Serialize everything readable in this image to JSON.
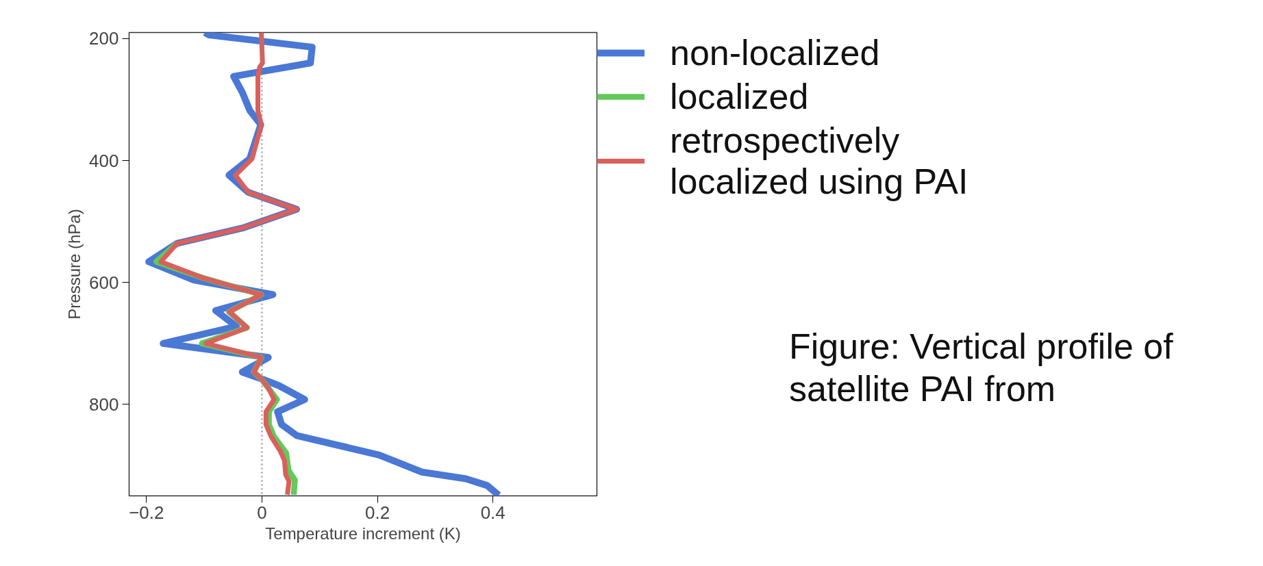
{
  "chart_data": {
    "type": "line",
    "xlabel": "Temperature increment (K)",
    "ylabel": "Pressure (hPa)",
    "xlim": [
      -0.23,
      0.58
    ],
    "ylim": [
      950,
      190
    ],
    "xticks": [
      {
        "value": -0.2,
        "label": "−0.2"
      },
      0,
      0.2,
      0.4
    ],
    "yticks": [
      200,
      400,
      600,
      800
    ],
    "grid": false,
    "legend": "right",
    "line_style": "solid",
    "marker": "none",
    "ref_lines": [
      {
        "axis": "x",
        "value": 0,
        "label": null,
        "color": "#888888",
        "line_style": "dotted"
      }
    ],
    "annotations": [
      "Figure: Vertical profile of satellite PAI from"
    ],
    "series": [
      {
        "name": "non-localized",
        "color": "#4a78d4",
        "x": [
          -0.099,
          -0.092,
          0.087,
          0.084,
          -0.049,
          -0.034,
          -0.021,
          -0.002,
          -0.021,
          -0.057,
          -0.024,
          0.06,
          -0.031,
          -0.147,
          -0.196,
          -0.118,
          0.019,
          -0.08,
          -0.044,
          -0.171,
          0.011,
          -0.034,
          -0.001,
          0.029,
          0.074,
          0.027,
          0.034,
          0.06,
          0.203,
          0.277,
          0.353,
          0.39,
          0.41
        ],
        "values": [
          190,
          194,
          214,
          240,
          262,
          288,
          318,
          341,
          397,
          424,
          452,
          480,
          510,
          536,
          566,
          596,
          620,
          646,
          672,
          700,
          723,
          747,
          758,
          769,
          792,
          812,
          833,
          851,
          883,
          911,
          922,
          933,
          949
        ]
      },
      {
        "name": "localized",
        "color": "#63c95a",
        "x": [
          -0.147,
          -0.183,
          -0.104,
          -0.001,
          -0.057,
          -0.026,
          -0.104,
          -0.001,
          -0.014,
          -0.001,
          0.011,
          0.026,
          0.012,
          0.012,
          0.021,
          0.042,
          0.046,
          0.057,
          0.055
        ],
        "values": [
          536,
          566,
          592,
          620,
          648,
          674,
          700,
          723,
          747,
          758,
          773,
          792,
          812,
          833,
          853,
          880,
          908,
          924,
          948
        ]
      },
      {
        "name": "retrospectively localized using PAI",
        "color": "#d9605c",
        "x": [
          -0.001,
          0.001,
          -0.004,
          -0.007,
          -0.007,
          -0.001,
          -0.017,
          -0.046,
          -0.024,
          0.06,
          -0.031,
          -0.147,
          -0.175,
          -0.104,
          -0.001,
          -0.057,
          -0.026,
          -0.097,
          -0.001,
          -0.014,
          -0.001,
          0.011,
          0.021,
          0.007,
          0.007,
          0.016,
          0.032,
          0.039,
          0.041,
          0.047,
          0.044
        ],
        "values": [
          190,
          240,
          247,
          262,
          318,
          341,
          397,
          424,
          452,
          480,
          510,
          536,
          566,
          592,
          620,
          648,
          674,
          700,
          723,
          747,
          758,
          773,
          792,
          812,
          833,
          853,
          877,
          892,
          915,
          926,
          948
        ]
      }
    ]
  }
}
